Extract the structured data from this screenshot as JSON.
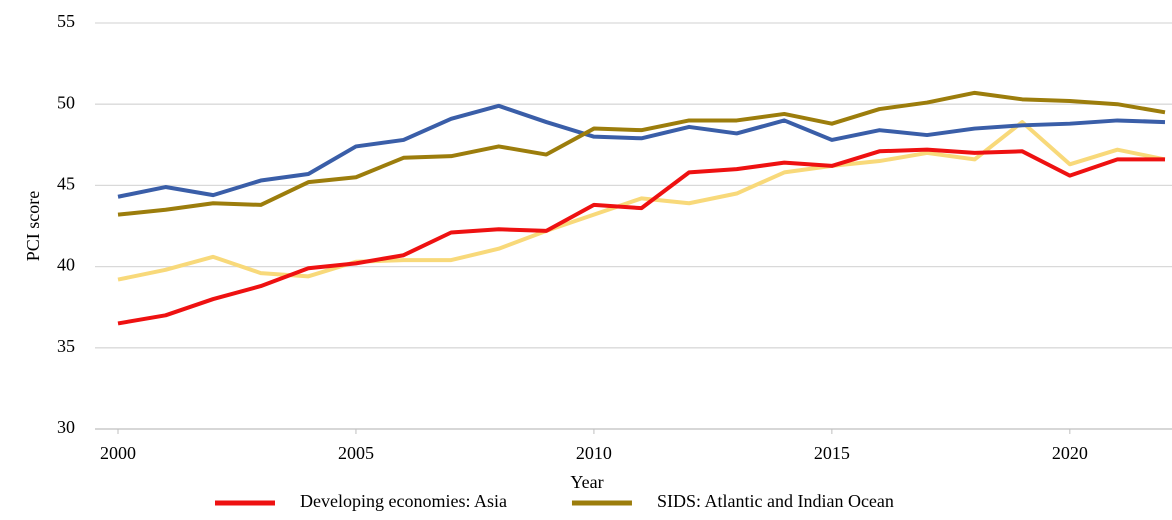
{
  "chart_data": {
    "type": "line",
    "x_label": "Year",
    "y_label": "PCI score",
    "x": [
      2000,
      2001,
      2002,
      2003,
      2004,
      2005,
      2006,
      2007,
      2008,
      2009,
      2010,
      2011,
      2012,
      2013,
      2014,
      2015,
      2016,
      2017,
      2018,
      2019,
      2020,
      2021,
      2022
    ],
    "xlim": [
      2000,
      2022
    ],
    "xticks": [
      2000,
      2005,
      2010,
      2015,
      2020
    ],
    "ylim": [
      30,
      55
    ],
    "yticks": [
      30,
      35,
      40,
      45,
      50,
      55
    ],
    "grid": true,
    "legend": "bottom",
    "series": [
      {
        "color": "#f8d97a",
        "values": [
          39.2,
          39.8,
          40.6,
          39.6,
          39.4,
          40.3,
          40.4,
          40.4,
          41.1,
          42.2,
          43.2,
          44.2,
          43.9,
          44.5,
          45.8,
          46.2,
          46.5,
          47.0,
          46.6,
          48.9,
          46.3,
          47.2,
          46.6
        ]
      },
      {
        "color": "#3a5ea8",
        "values": [
          44.3,
          44.9,
          44.4,
          45.3,
          45.7,
          47.4,
          47.8,
          49.1,
          49.9,
          48.9,
          48.0,
          47.9,
          48.6,
          48.2,
          49.0,
          47.8,
          48.4,
          48.1,
          48.5,
          48.7,
          48.8,
          49.0,
          48.9
        ]
      },
      {
        "name": "Developing economies: Asia",
        "color": "#ee1111",
        "values": [
          36.5,
          37.0,
          38.0,
          38.8,
          39.9,
          40.2,
          40.7,
          42.1,
          42.3,
          42.2,
          43.8,
          43.6,
          45.8,
          46.0,
          46.4,
          46.2,
          47.1,
          47.2,
          47.0,
          47.1,
          45.6,
          46.6,
          46.6
        ]
      },
      {
        "name": "SIDS: Atlantic and Indian Ocean",
        "color": "#9c7d0c",
        "values": [
          43.2,
          43.5,
          43.9,
          43.8,
          45.2,
          45.5,
          46.7,
          46.8,
          47.4,
          46.9,
          48.5,
          48.4,
          49.0,
          49.0,
          49.4,
          48.8,
          49.7,
          50.1,
          50.7,
          50.3,
          50.2,
          50.0,
          49.5
        ]
      }
    ]
  }
}
